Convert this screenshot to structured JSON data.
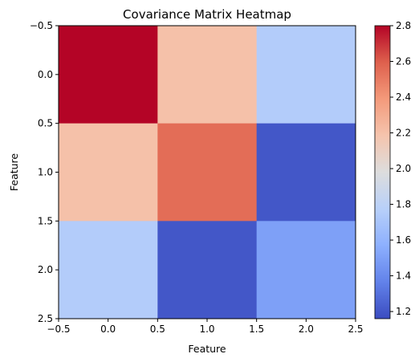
{
  "chart_data": {
    "type": "heatmap",
    "title": "Covariance Matrix Heatmap",
    "xlabel": "Feature",
    "ylabel": "Feature",
    "matrix": [
      [
        2.8,
        2.2,
        1.75
      ],
      [
        2.2,
        2.55,
        1.2
      ],
      [
        1.75,
        1.2,
        1.5
      ]
    ],
    "x_ticks": [
      "−0.5",
      "0.0",
      "0.5",
      "1.0",
      "1.5",
      "2.0",
      "2.5"
    ],
    "y_ticks": [
      "−0.5",
      "0.0",
      "0.5",
      "1.0",
      "1.5",
      "2.0",
      "2.5"
    ],
    "xlim": [
      -0.5,
      2.5
    ],
    "ylim": [
      2.5,
      -0.5
    ],
    "colormap": "coolwarm",
    "colorbar": {
      "vmin": 1.16,
      "vmax": 2.8,
      "ticks": [
        1.2,
        1.4,
        1.6,
        1.8,
        2.0,
        2.2,
        2.4,
        2.6,
        2.8
      ],
      "tick_labels": [
        "1.2",
        "1.4",
        "1.6",
        "1.8",
        "2.0",
        "2.2",
        "2.4",
        "2.6",
        "2.8"
      ]
    }
  }
}
